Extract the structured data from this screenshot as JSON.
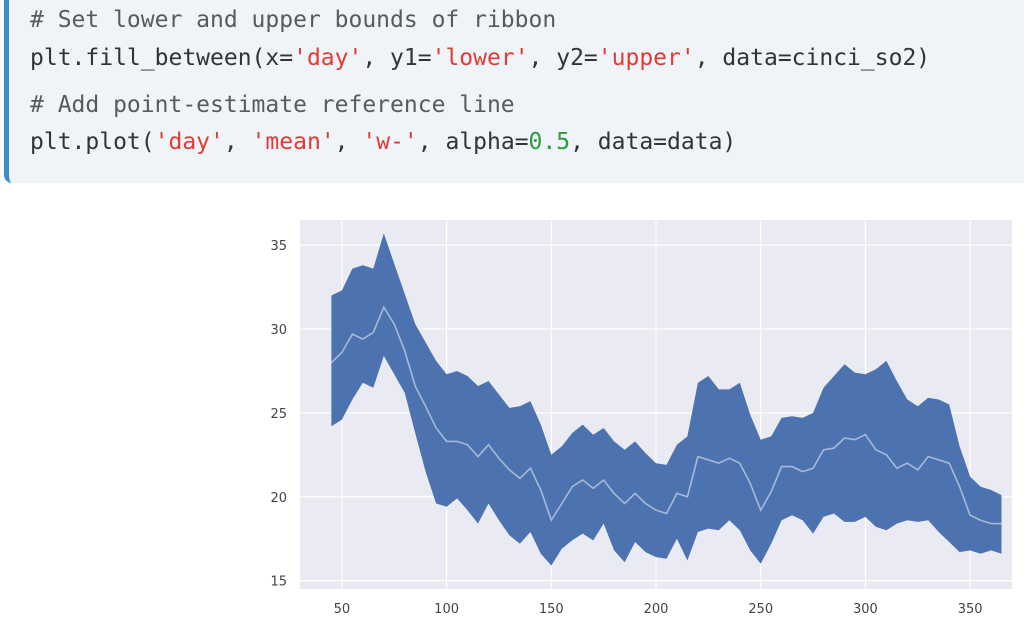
{
  "code": {
    "lines": [
      [
        {
          "t": "# Set lower and upper bounds of ribbon",
          "c": "comment"
        }
      ],
      [
        {
          "t": "plt.fill_between(x=",
          "c": "plain"
        },
        {
          "t": "'day'",
          "c": "str"
        },
        {
          "t": ", y1=",
          "c": "plain"
        },
        {
          "t": "'lower'",
          "c": "str"
        },
        {
          "t": ", y2=",
          "c": "plain"
        },
        {
          "t": "'upper'",
          "c": "str"
        },
        {
          "t": ", data=cinci_so2)",
          "c": "plain"
        }
      ],
      [
        {
          "t": "# Add point-estimate reference line",
          "c": "comment"
        }
      ],
      [
        {
          "t": "plt.plot(",
          "c": "plain"
        },
        {
          "t": "'day'",
          "c": "str"
        },
        {
          "t": ", ",
          "c": "plain"
        },
        {
          "t": "'mean'",
          "c": "str"
        },
        {
          "t": ", ",
          "c": "plain"
        },
        {
          "t": "'w-'",
          "c": "str"
        },
        {
          "t": ", alpha=",
          "c": "plain"
        },
        {
          "t": "0.5",
          "c": "num"
        },
        {
          "t": ", data=data)",
          "c": "plain"
        }
      ]
    ]
  },
  "chart_data": {
    "type": "area",
    "title": "",
    "xlabel": "",
    "ylabel": "",
    "xlim": [
      30,
      370
    ],
    "ylim": [
      14.5,
      36.5
    ],
    "xticks": [
      50,
      100,
      150,
      200,
      250,
      300,
      350
    ],
    "yticks": [
      15,
      20,
      25,
      30,
      35
    ],
    "grid": true,
    "background": "#eaeaf2",
    "fill_color": "#4c72b0",
    "line_color": "#ffffff",
    "line_alpha": 0.5,
    "series": [
      {
        "x": [
          45,
          50,
          55,
          60,
          65,
          70,
          75,
          80,
          85,
          90,
          95,
          100,
          105,
          110,
          115,
          120,
          125,
          130,
          135,
          140,
          145,
          150,
          155,
          160,
          165,
          170,
          175,
          180,
          185,
          190,
          195,
          200,
          205,
          210,
          215,
          220,
          225,
          230,
          235,
          240,
          245,
          250,
          255,
          260,
          265,
          270,
          275,
          280,
          285,
          290,
          295,
          300,
          305,
          310,
          315,
          320,
          325,
          330,
          335,
          340,
          345,
          350,
          355,
          360,
          365
        ],
        "lower": [
          24.2,
          24.6,
          25.8,
          26.8,
          26.5,
          28.4,
          27.3,
          26.2,
          23.8,
          21.5,
          19.6,
          19.4,
          19.9,
          19.2,
          18.4,
          19.6,
          18.6,
          17.7,
          17.2,
          17.9,
          16.6,
          15.9,
          16.9,
          17.4,
          17.8,
          17.4,
          18.4,
          16.8,
          16.1,
          17.3,
          16.7,
          16.4,
          16.3,
          17.5,
          16.2,
          17.9,
          18.1,
          18.0,
          18.6,
          18.0,
          16.8,
          16.0,
          17.2,
          18.6,
          18.9,
          18.6,
          17.8,
          18.8,
          19.0,
          18.5,
          18.5,
          18.8,
          18.2,
          18.0,
          18.4,
          18.6,
          18.5,
          18.6,
          17.9,
          17.3,
          16.7,
          16.8,
          16.6,
          16.8,
          16.6
        ],
        "upper": [
          32.0,
          32.3,
          33.6,
          33.8,
          33.6,
          35.7,
          33.9,
          32.1,
          30.3,
          29.2,
          28.1,
          27.3,
          27.5,
          27.2,
          26.6,
          26.9,
          26.1,
          25.3,
          25.4,
          25.7,
          24.3,
          22.5,
          23.0,
          23.8,
          24.3,
          23.7,
          24.1,
          23.3,
          22.8,
          23.3,
          22.6,
          22.0,
          21.9,
          23.1,
          23.6,
          26.8,
          27.2,
          26.4,
          26.4,
          26.8,
          24.9,
          23.4,
          23.6,
          24.7,
          24.8,
          24.7,
          25.0,
          26.5,
          27.2,
          27.9,
          27.4,
          27.3,
          27.6,
          28.1,
          26.9,
          25.8,
          25.4,
          25.9,
          25.8,
          25.5,
          23.0,
          21.2,
          20.6,
          20.4,
          20.1
        ],
        "mean": [
          28.0,
          28.6,
          29.7,
          29.4,
          29.8,
          31.3,
          30.3,
          28.7,
          26.6,
          25.4,
          24.1,
          23.3,
          23.3,
          23.1,
          22.4,
          23.1,
          22.3,
          21.6,
          21.1,
          21.7,
          20.4,
          18.6,
          19.6,
          20.6,
          21.0,
          20.5,
          21.0,
          20.2,
          19.6,
          20.2,
          19.6,
          19.2,
          19.0,
          20.2,
          20.0,
          22.4,
          22.2,
          22.0,
          22.3,
          22.0,
          20.8,
          19.2,
          20.3,
          21.8,
          21.8,
          21.5,
          21.7,
          22.8,
          22.9,
          23.5,
          23.4,
          23.7,
          22.8,
          22.5,
          21.7,
          22.0,
          21.6,
          22.4,
          22.2,
          22.0,
          20.6,
          18.9,
          18.6,
          18.4,
          18.4
        ]
      }
    ]
  }
}
